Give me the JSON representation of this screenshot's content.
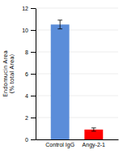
{
  "chart_data": {
    "type": "bar",
    "categories": [
      "Control IgG",
      "Angy-2-1"
    ],
    "values": [
      10.5,
      0.9
    ],
    "errors": [
      0.4,
      0.15
    ],
    "colors": [
      "#5B8DD9",
      "#FF0000"
    ],
    "ylabel": "Endomucin Area\n(% total Area)",
    "ylim": [
      0,
      12
    ],
    "yticks": [
      0,
      2,
      4,
      6,
      8,
      10,
      12
    ],
    "grid": true
  }
}
